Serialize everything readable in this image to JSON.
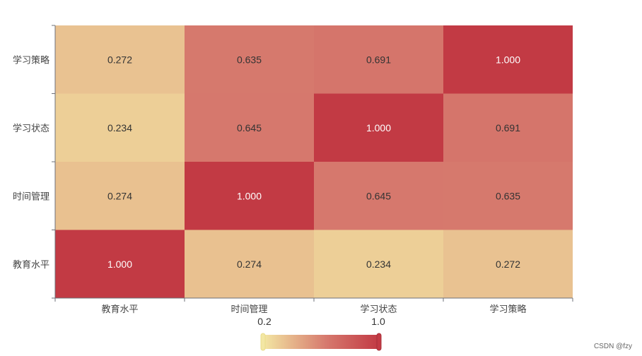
{
  "chart_data": {
    "type": "heatmap",
    "x_categories": [
      "教育水平",
      "时间管理",
      "学习状态",
      "学习策略"
    ],
    "y_categories": [
      "教育水平",
      "时间管理",
      "学习状态",
      "学习策略"
    ],
    "values": [
      [
        1.0,
        0.274,
        0.234,
        0.272
      ],
      [
        0.274,
        1.0,
        0.645,
        0.635
      ],
      [
        0.234,
        0.645,
        1.0,
        0.691
      ],
      [
        0.272,
        0.635,
        0.691,
        1.0
      ]
    ],
    "value_labels": [
      [
        "1.000",
        "0.274",
        "0.234",
        "0.272"
      ],
      [
        "0.274",
        "1.000",
        "0.645",
        "0.635"
      ],
      [
        "0.234",
        "0.645",
        "1.000",
        "0.691"
      ],
      [
        "0.272",
        "0.635",
        "0.691",
        "1.000"
      ]
    ],
    "visual_map": {
      "min": 0.2,
      "max": 1.0,
      "min_label": "0.2",
      "max_label": "1.0",
      "color_low": "#f3e7a3",
      "color_mid": "#d6786d",
      "color_high": "#c23a44"
    }
  },
  "watermark": "CSDN @fzy"
}
